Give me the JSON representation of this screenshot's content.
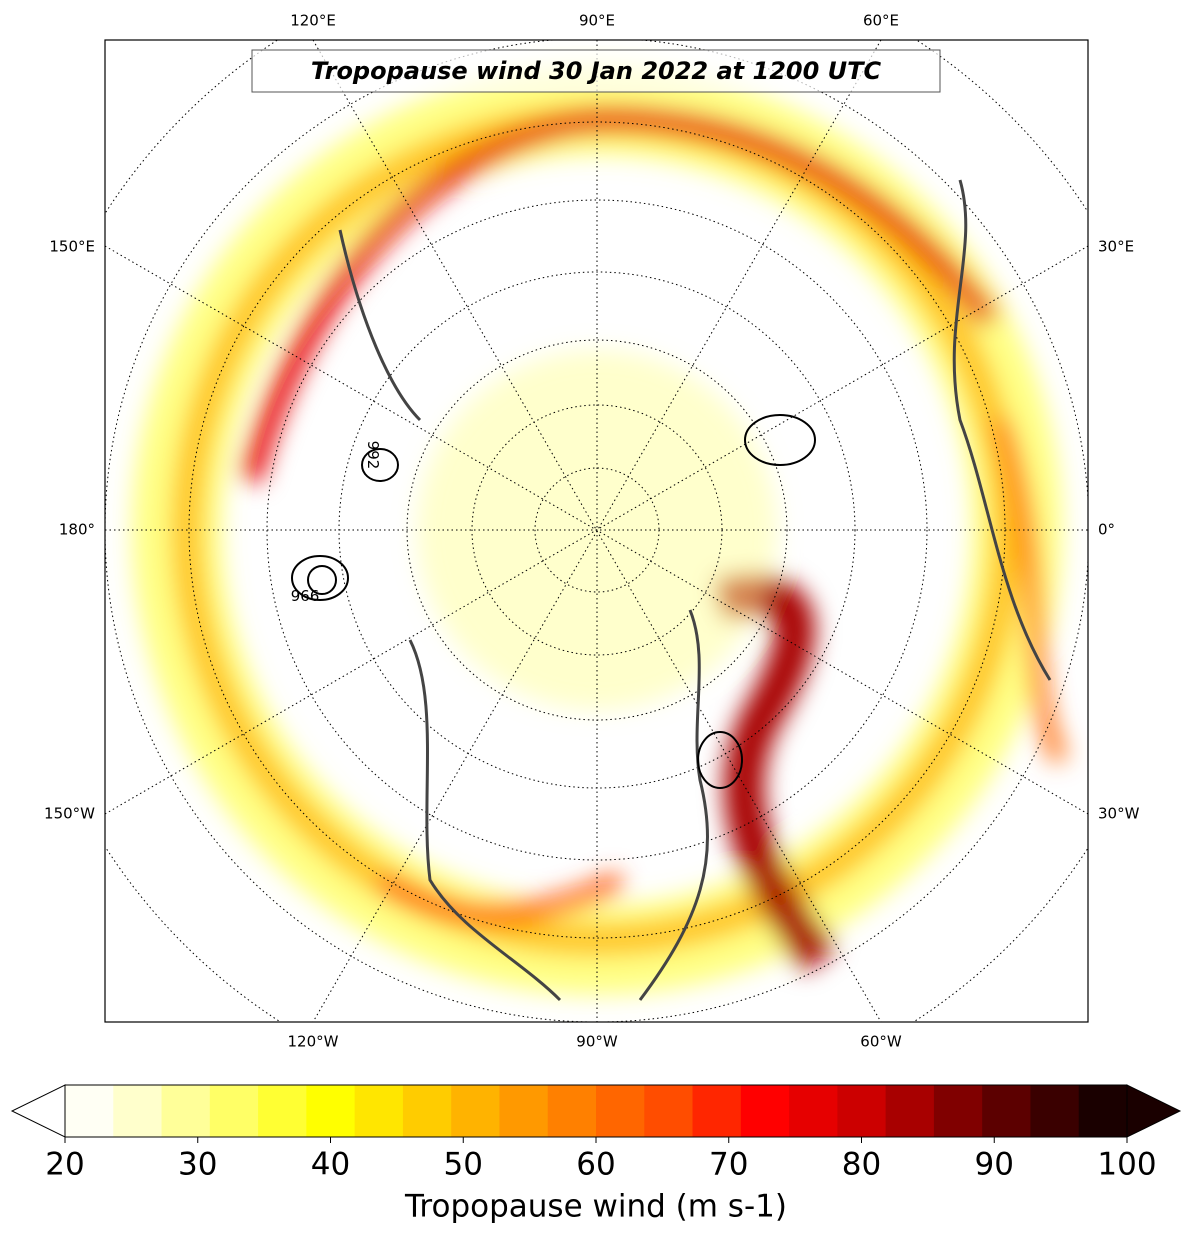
{
  "map": {
    "title": "Tropopause wind 30 Jan 2022 at 1200 UTC",
    "top_labels": [
      "120°E",
      "90°E",
      "60°E"
    ],
    "left_labels": [
      "150°E",
      "180°",
      "150°W"
    ],
    "right_labels": [
      "30°E",
      "0°",
      "30°W"
    ],
    "bottom_labels": [
      "120°W",
      "90°W",
      "60°W"
    ],
    "contour_labels": [
      "992",
      "996"
    ],
    "colorbar": {
      "label": "Tropopause wind (m s-1)",
      "range": [
        20,
        100
      ],
      "ticks": [
        20,
        30,
        40,
        50,
        60,
        70,
        80,
        90,
        100
      ],
      "colors": [
        "#fffff4",
        "#ffffcc",
        "#ffff99",
        "#ffff66",
        "#ffff33",
        "#ffff00",
        "#ffe600",
        "#ffcc00",
        "#ffb300",
        "#ff9900",
        "#ff8000",
        "#ff6600",
        "#ff4d00",
        "#ff2600",
        "#ff0000",
        "#e60000",
        "#cc0000",
        "#a80000",
        "#800000",
        "#5c0000",
        "#3a0000",
        "#1a0000"
      ]
    }
  }
}
